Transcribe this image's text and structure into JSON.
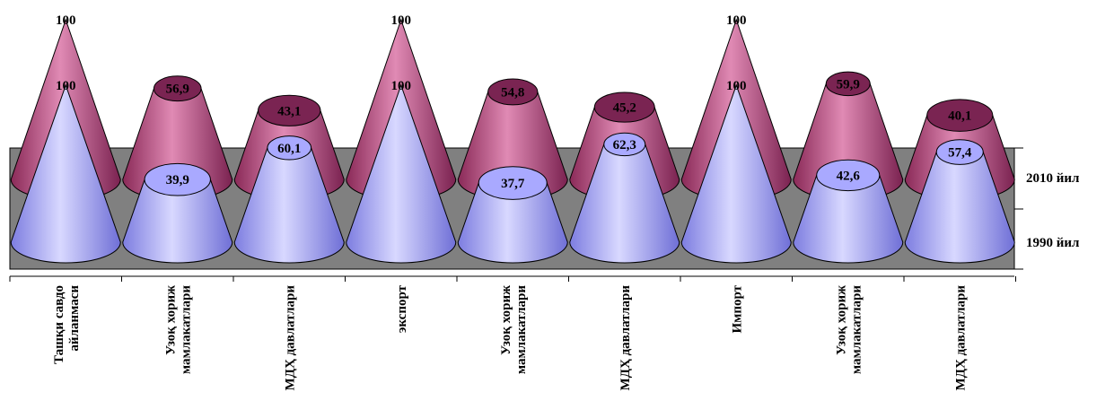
{
  "chart_data": {
    "type": "bar",
    "shape": "3d-cone",
    "categories": [
      "Ташқи савдо айланмаси",
      "Узоқ хориж мамлакатлари",
      "МДҲ давлатлари",
      "экспорт",
      "Узоқ хориж мамлакатлари",
      "МДҲ давлатлари",
      "Импорт",
      "Узоқ хориж мамлакатлари",
      "МДҲ давлатлари"
    ],
    "category_lines": [
      [
        "Ташқи савдо",
        "айланмаси"
      ],
      [
        "Узоқ хориж",
        "мамлакатлари"
      ],
      [
        "МДҲ давлатлари"
      ],
      [
        "экспорт"
      ],
      [
        "Узоқ хориж",
        "мамлакатлари"
      ],
      [
        "МДҲ давлатлари"
      ],
      [
        "Импорт"
      ],
      [
        "Узоқ хориж",
        "мамлакатлари"
      ],
      [
        "МДҲ давлатлари"
      ]
    ],
    "series": [
      {
        "name": "1990 йил",
        "values": [
          100,
          39.9,
          60.1,
          100,
          37.7,
          62.3,
          100,
          42.6,
          57.4
        ]
      },
      {
        "name": "2010 йил",
        "values": [
          100,
          56.9,
          43.1,
          100,
          54.8,
          45.2,
          100,
          59.9,
          40.1
        ]
      }
    ],
    "data_labels": [
      [
        "100",
        "39,9",
        "60,1",
        "100",
        "37,7",
        "62,3",
        "100",
        "42,6",
        "57,4"
      ],
      [
        "100",
        "56,9",
        "43,1",
        "100",
        "54,8",
        "45,2",
        "100",
        "59,9",
        "40,1"
      ]
    ],
    "ylim": [
      0,
      100
    ],
    "colors": {
      "series_1990": "#9b9bfb",
      "series_2010": "#a03a6e",
      "wall": "#808080"
    }
  }
}
